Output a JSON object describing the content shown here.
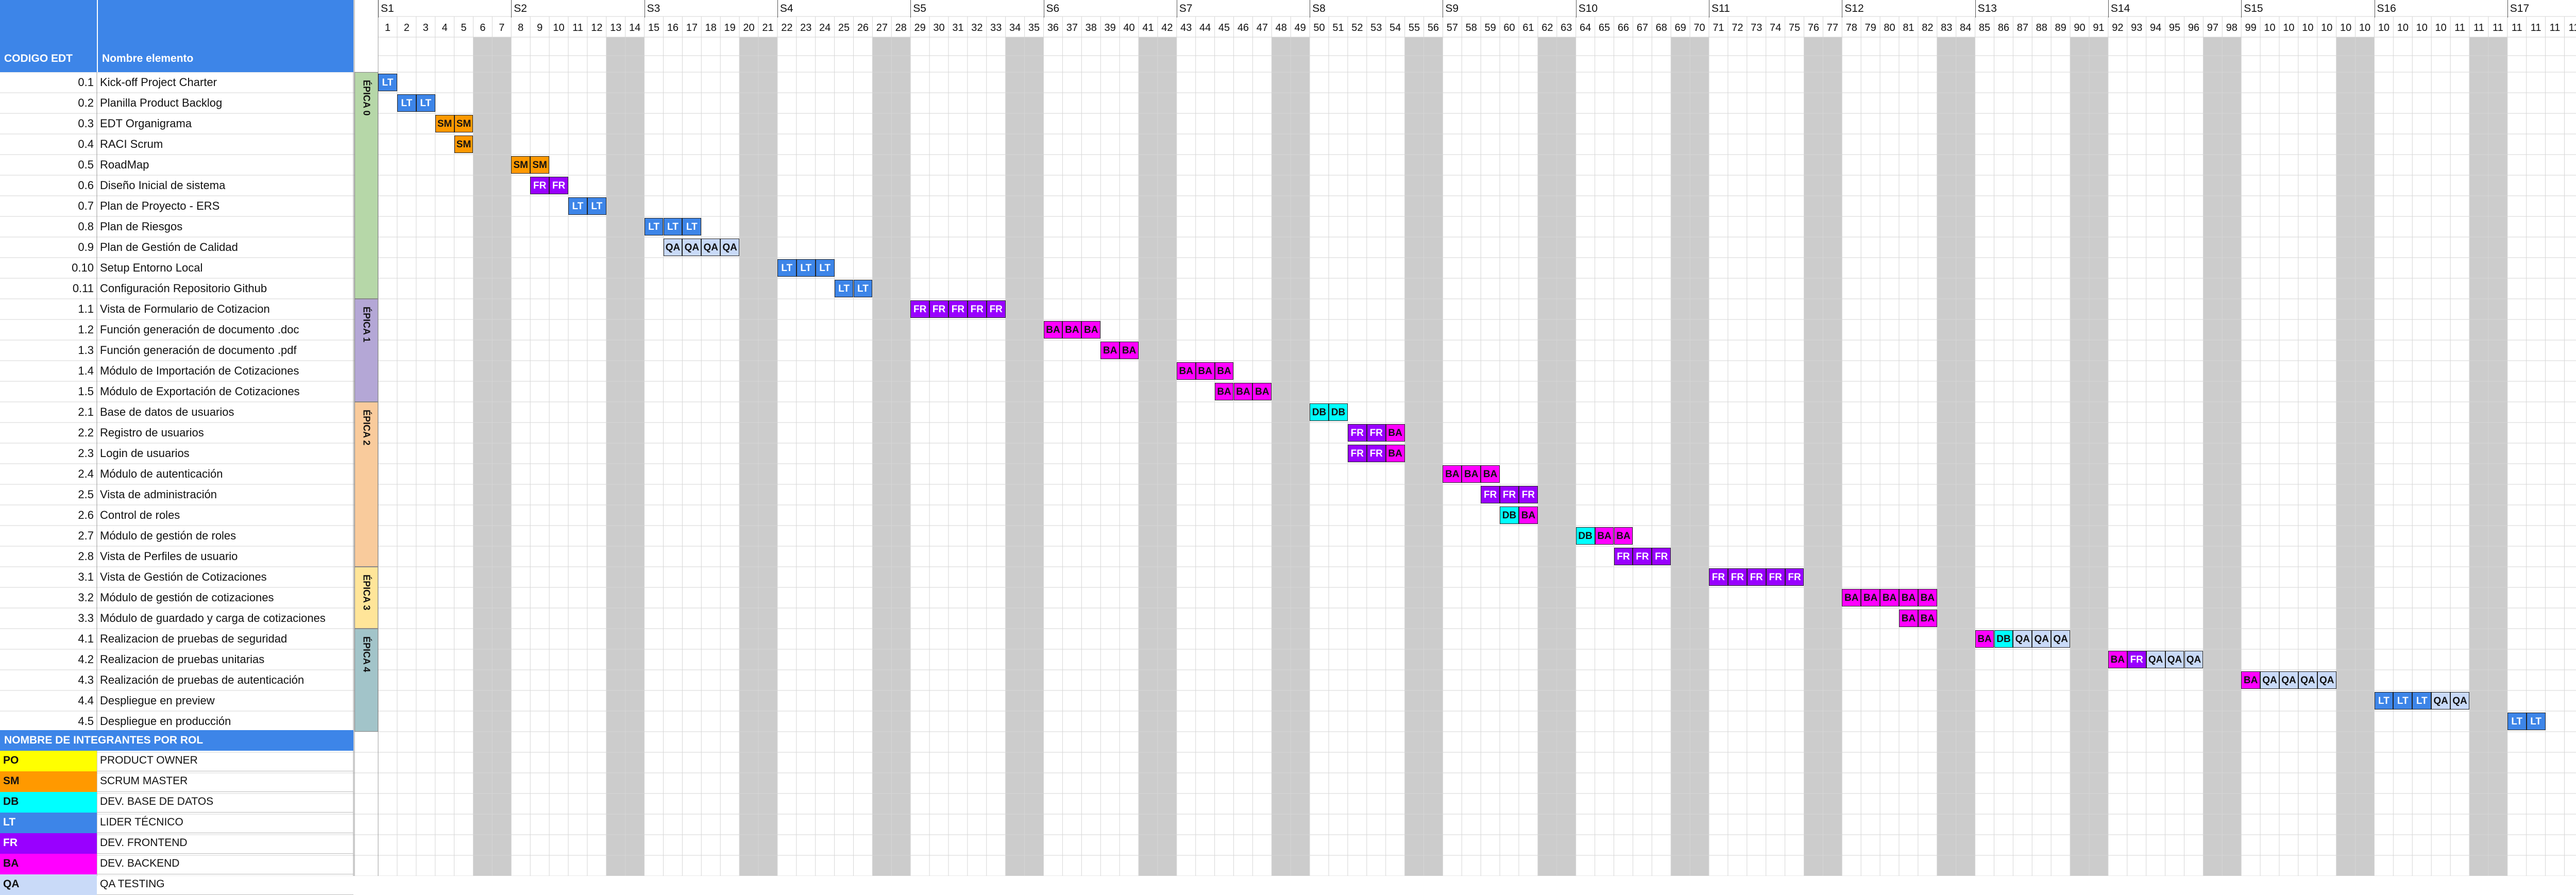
{
  "header": {
    "code_col": "CODIGO EDT",
    "name_col": "Nombre elemento"
  },
  "weeks": [
    "S1",
    "S2",
    "S3",
    "S4",
    "S5",
    "S6",
    "S7",
    "S8",
    "S9",
    "S10",
    "S11",
    "S12",
    "S13",
    "S14",
    "S15",
    "S16",
    "S17"
  ],
  "day_labels": [
    "1",
    "2",
    "3",
    "4",
    "5",
    "6",
    "7",
    "8",
    "9",
    "10",
    "11",
    "12",
    "13",
    "14",
    "15",
    "16",
    "17",
    "18",
    "19",
    "20",
    "21",
    "22",
    "23",
    "24",
    "25",
    "26",
    "27",
    "28",
    "29",
    "30",
    "31",
    "32",
    "33",
    "34",
    "35",
    "36",
    "37",
    "38",
    "39",
    "40",
    "41",
    "42",
    "43",
    "44",
    "45",
    "46",
    "47",
    "48",
    "49",
    "50",
    "51",
    "52",
    "53",
    "54",
    "55",
    "56",
    "57",
    "58",
    "59",
    "60",
    "61",
    "62",
    "63",
    "64",
    "65",
    "66",
    "67",
    "68",
    "69",
    "70",
    "71",
    "72",
    "73",
    "74",
    "75",
    "76",
    "77",
    "78",
    "79",
    "80",
    "81",
    "82",
    "83",
    "84",
    "85",
    "86",
    "87",
    "88",
    "89",
    "90",
    "91",
    "92",
    "93",
    "94",
    "95",
    "96",
    "97",
    "98",
    "99",
    "10",
    "10",
    "10",
    "10",
    "10",
    "10",
    "10",
    "10",
    "10",
    "10",
    "11",
    "11",
    "11",
    "11",
    "11",
    "11",
    "11",
    "11",
    "11",
    "11"
  ],
  "weekend_day_indices": [
    6,
    7,
    13,
    14,
    20,
    21,
    27,
    28,
    34,
    35,
    41,
    42,
    48,
    49,
    55,
    56,
    62,
    63,
    69,
    70,
    76,
    77,
    83,
    84,
    90,
    91,
    97,
    98,
    104,
    105,
    111,
    112,
    118,
    119
  ],
  "epics": [
    {
      "label": "ÉPICA 0",
      "color": "#b6d7a8"
    },
    {
      "label": "ÉPICA 1",
      "color": "#b4a7d6"
    },
    {
      "label": "ÉPICA 2",
      "color": "#f9cb9c"
    },
    {
      "label": "ÉPICA 3",
      "color": "#ffe599"
    },
    {
      "label": "ÉPICA 4",
      "color": "#a2c4c9"
    }
  ],
  "tasks": [
    {
      "code": "0.1",
      "name": "Kick-off Project Charter",
      "epic": 0,
      "bars": [
        {
          "day": 1,
          "role": "LT"
        }
      ]
    },
    {
      "code": "0.2",
      "name": "Planilla Product Backlog",
      "epic": 0,
      "bars": [
        {
          "day": 2,
          "role": "LT"
        },
        {
          "day": 3,
          "role": "LT"
        }
      ]
    },
    {
      "code": "0.3",
      "name": "EDT Organigrama",
      "epic": 0,
      "bars": [
        {
          "day": 4,
          "role": "SM"
        },
        {
          "day": 5,
          "role": "SM"
        }
      ]
    },
    {
      "code": "0.4",
      "name": "RACI Scrum",
      "epic": 0,
      "bars": [
        {
          "day": 5,
          "role": "SM"
        }
      ]
    },
    {
      "code": "0.5",
      "name": "RoadMap",
      "epic": 0,
      "bars": [
        {
          "day": 8,
          "role": "SM"
        },
        {
          "day": 9,
          "role": "SM"
        }
      ]
    },
    {
      "code": "0.6",
      "name": "Diseño Inicial de sistema",
      "epic": 0,
      "bars": [
        {
          "day": 9,
          "role": "FR"
        },
        {
          "day": 10,
          "role": "FR"
        }
      ]
    },
    {
      "code": "0.7",
      "name": "Plan de Proyecto - ERS",
      "epic": 0,
      "bars": [
        {
          "day": 11,
          "role": "LT"
        },
        {
          "day": 12,
          "role": "LT"
        }
      ]
    },
    {
      "code": "0.8",
      "name": "Plan de Riesgos",
      "epic": 0,
      "bars": [
        {
          "day": 15,
          "role": "LT"
        },
        {
          "day": 16,
          "role": "LT"
        },
        {
          "day": 17,
          "role": "LT"
        }
      ]
    },
    {
      "code": "0.9",
      "name": "Plan de Gestión de Calidad",
      "epic": 0,
      "bars": [
        {
          "day": 16,
          "role": "QA"
        },
        {
          "day": 17,
          "role": "QA"
        },
        {
          "day": 18,
          "role": "QA"
        },
        {
          "day": 19,
          "role": "QA"
        }
      ]
    },
    {
      "code": "0.10",
      "name": "Setup Entorno Local",
      "epic": 0,
      "bars": [
        {
          "day": 22,
          "role": "LT"
        },
        {
          "day": 23,
          "role": "LT"
        },
        {
          "day": 24,
          "role": "LT"
        }
      ]
    },
    {
      "code": "0.11",
      "name": "Configuración Repositorio Github",
      "epic": 0,
      "bars": [
        {
          "day": 25,
          "role": "LT"
        },
        {
          "day": 26,
          "role": "LT"
        }
      ]
    },
    {
      "code": "1.1",
      "name": "Vista de Formulario de Cotizacion",
      "epic": 1,
      "bars": [
        {
          "day": 29,
          "role": "FR"
        },
        {
          "day": 30,
          "role": "FR"
        },
        {
          "day": 31,
          "role": "FR"
        },
        {
          "day": 32,
          "role": "FR"
        },
        {
          "day": 33,
          "role": "FR"
        }
      ]
    },
    {
      "code": "1.2",
      "name": "Función generación de documento .doc",
      "epic": 1,
      "bars": [
        {
          "day": 36,
          "role": "BA"
        },
        {
          "day": 37,
          "role": "BA"
        },
        {
          "day": 38,
          "role": "BA"
        }
      ]
    },
    {
      "code": "1.3",
      "name": "Función generación de documento .pdf",
      "epic": 1,
      "bars": [
        {
          "day": 39,
          "role": "BA"
        },
        {
          "day": 40,
          "role": "BA"
        }
      ]
    },
    {
      "code": "1.4",
      "name": "Módulo de Importación de Cotizaciones",
      "epic": 1,
      "bars": [
        {
          "day": 43,
          "role": "BA"
        },
        {
          "day": 44,
          "role": "BA"
        },
        {
          "day": 45,
          "role": "BA"
        }
      ]
    },
    {
      "code": "1.5",
      "name": "Módulo de Exportación de Cotizaciones",
      "epic": 1,
      "bars": [
        {
          "day": 45,
          "role": "BA"
        },
        {
          "day": 46,
          "role": "BA"
        },
        {
          "day": 47,
          "role": "BA"
        }
      ]
    },
    {
      "code": "2.1",
      "name": "Base de datos de usuarios",
      "epic": 2,
      "bars": [
        {
          "day": 50,
          "role": "DB"
        },
        {
          "day": 51,
          "role": "DB"
        }
      ]
    },
    {
      "code": "2.2",
      "name": "Registro de usuarios",
      "epic": 2,
      "bars": [
        {
          "day": 52,
          "role": "FR"
        },
        {
          "day": 53,
          "role": "FR"
        },
        {
          "day": 54,
          "role": "BA"
        }
      ]
    },
    {
      "code": "2.3",
      "name": "Login de usuarios",
      "epic": 2,
      "bars": [
        {
          "day": 52,
          "role": "FR"
        },
        {
          "day": 53,
          "role": "FR"
        },
        {
          "day": 54,
          "role": "BA"
        }
      ]
    },
    {
      "code": "2.4",
      "name": "Módulo de autenticación",
      "epic": 2,
      "bars": [
        {
          "day": 57,
          "role": "BA"
        },
        {
          "day": 58,
          "role": "BA"
        },
        {
          "day": 59,
          "role": "BA"
        }
      ]
    },
    {
      "code": "2.5",
      "name": "Vista de administración",
      "epic": 2,
      "bars": [
        {
          "day": 59,
          "role": "FR"
        },
        {
          "day": 60,
          "role": "FR"
        },
        {
          "day": 61,
          "role": "FR"
        }
      ]
    },
    {
      "code": "2.6",
      "name": "Control de roles",
      "epic": 2,
      "bars": [
        {
          "day": 60,
          "role": "DB"
        },
        {
          "day": 61,
          "role": "BA"
        }
      ]
    },
    {
      "code": "2.7",
      "name": "Módulo de gestión de roles",
      "epic": 2,
      "bars": [
        {
          "day": 64,
          "role": "DB"
        },
        {
          "day": 65,
          "role": "BA"
        },
        {
          "day": 66,
          "role": "BA"
        }
      ]
    },
    {
      "code": "2.8",
      "name": "Vista de Perfiles de usuario",
      "epic": 2,
      "bars": [
        {
          "day": 66,
          "role": "FR"
        },
        {
          "day": 67,
          "role": "FR"
        },
        {
          "day": 68,
          "role": "FR"
        }
      ]
    },
    {
      "code": "3.1",
      "name": "Vista de Gestión de Cotizaciones",
      "epic": 3,
      "bars": [
        {
          "day": 71,
          "role": "FR"
        },
        {
          "day": 72,
          "role": "FR"
        },
        {
          "day": 73,
          "role": "FR"
        },
        {
          "day": 74,
          "role": "FR"
        },
        {
          "day": 75,
          "role": "FR"
        }
      ]
    },
    {
      "code": "3.2",
      "name": "Módulo de gestión de cotizaciones",
      "epic": 3,
      "bars": [
        {
          "day": 78,
          "role": "BA"
        },
        {
          "day": 79,
          "role": "BA"
        },
        {
          "day": 80,
          "role": "BA"
        },
        {
          "day": 81,
          "role": "BA"
        },
        {
          "day": 82,
          "role": "BA"
        }
      ]
    },
    {
      "code": "3.3",
      "name": "Módulo de guardado y carga de cotizaciones",
      "epic": 3,
      "bars": [
        {
          "day": 81,
          "role": "BA"
        },
        {
          "day": 82,
          "role": "BA"
        }
      ]
    },
    {
      "code": "4.1",
      "name": "Realizacion de pruebas de seguridad",
      "epic": 4,
      "bars": [
        {
          "day": 85,
          "role": "BA"
        },
        {
          "day": 86,
          "role": "DB"
        },
        {
          "day": 87,
          "role": "QA"
        },
        {
          "day": 88,
          "role": "QA"
        },
        {
          "day": 89,
          "role": "QA"
        }
      ]
    },
    {
      "code": "4.2",
      "name": "Realizacion de pruebas unitarias",
      "epic": 4,
      "bars": [
        {
          "day": 92,
          "role": "BA"
        },
        {
          "day": 93,
          "role": "FR"
        },
        {
          "day": 94,
          "role": "QA"
        },
        {
          "day": 95,
          "role": "QA"
        },
        {
          "day": 96,
          "role": "QA"
        }
      ]
    },
    {
      "code": "4.3",
      "name": "Realización de pruebas de autenticación",
      "epic": 4,
      "bars": [
        {
          "day": 99,
          "role": "BA"
        },
        {
          "day": 100,
          "role": "QA"
        },
        {
          "day": 101,
          "role": "QA"
        },
        {
          "day": 102,
          "role": "QA"
        },
        {
          "day": 103,
          "role": "QA"
        }
      ]
    },
    {
      "code": "4.4",
      "name": "Despliegue en preview",
      "epic": 4,
      "bars": [
        {
          "day": 106,
          "role": "LT"
        },
        {
          "day": 107,
          "role": "LT"
        },
        {
          "day": 108,
          "role": "LT"
        },
        {
          "day": 109,
          "role": "QA"
        },
        {
          "day": 110,
          "role": "QA"
        }
      ]
    },
    {
      "code": "4.5",
      "name": "Despliegue en producción",
      "epic": 4,
      "bars": [
        {
          "day": 113,
          "role": "LT"
        },
        {
          "day": 114,
          "role": "LT"
        }
      ]
    }
  ],
  "roles_header": "NOMBRE DE INTEGRANTES POR ROL",
  "roles": [
    {
      "code": "PO",
      "name": "PRODUCT OWNER",
      "color": "#ffff00",
      "text": "#111111"
    },
    {
      "code": "SM",
      "name": "SCRUM MASTER",
      "color": "#ff9900",
      "text": "#111111"
    },
    {
      "code": "DB",
      "name": "DEV. BASE DE DATOS",
      "color": "#00ffff",
      "text": "#111111"
    },
    {
      "code": "LT",
      "name": "LIDER TÉCNICO",
      "color": "#3d85e8",
      "text": "#ffffff"
    },
    {
      "code": "FR",
      "name": "DEV. FRONTEND",
      "color": "#9900ff",
      "text": "#ffffff"
    },
    {
      "code": "BA",
      "name": "DEV. BACKEND",
      "color": "#ff00ff",
      "text": "#111111"
    },
    {
      "code": "QA",
      "name": "QA TESTING",
      "color": "#c9daf8",
      "text": "#111111"
    }
  ]
}
